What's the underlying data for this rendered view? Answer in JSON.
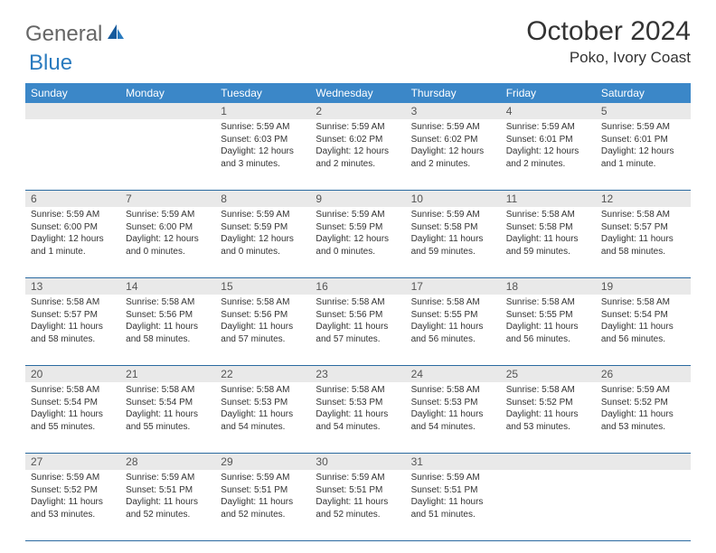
{
  "brand": {
    "part1": "General",
    "part2": "Blue"
  },
  "title": "October 2024",
  "location": "Poko, Ivory Coast",
  "weekdays": [
    "Sunday",
    "Monday",
    "Tuesday",
    "Wednesday",
    "Thursday",
    "Friday",
    "Saturday"
  ],
  "colors": {
    "header_bg": "#3b87c8",
    "header_text": "#ffffff",
    "daynum_bg": "#e9e9e9",
    "rule": "#2a6aa0",
    "logo_blue": "#2a7bbf"
  },
  "days": [
    {
      "n": "",
      "sun": "",
      "set": "",
      "day": ""
    },
    {
      "n": "",
      "sun": "",
      "set": "",
      "day": ""
    },
    {
      "n": "1",
      "sun": "Sunrise: 5:59 AM",
      "set": "Sunset: 6:03 PM",
      "day": "Daylight: 12 hours and 3 minutes."
    },
    {
      "n": "2",
      "sun": "Sunrise: 5:59 AM",
      "set": "Sunset: 6:02 PM",
      "day": "Daylight: 12 hours and 2 minutes."
    },
    {
      "n": "3",
      "sun": "Sunrise: 5:59 AM",
      "set": "Sunset: 6:02 PM",
      "day": "Daylight: 12 hours and 2 minutes."
    },
    {
      "n": "4",
      "sun": "Sunrise: 5:59 AM",
      "set": "Sunset: 6:01 PM",
      "day": "Daylight: 12 hours and 2 minutes."
    },
    {
      "n": "5",
      "sun": "Sunrise: 5:59 AM",
      "set": "Sunset: 6:01 PM",
      "day": "Daylight: 12 hours and 1 minute."
    },
    {
      "n": "6",
      "sun": "Sunrise: 5:59 AM",
      "set": "Sunset: 6:00 PM",
      "day": "Daylight: 12 hours and 1 minute."
    },
    {
      "n": "7",
      "sun": "Sunrise: 5:59 AM",
      "set": "Sunset: 6:00 PM",
      "day": "Daylight: 12 hours and 0 minutes."
    },
    {
      "n": "8",
      "sun": "Sunrise: 5:59 AM",
      "set": "Sunset: 5:59 PM",
      "day": "Daylight: 12 hours and 0 minutes."
    },
    {
      "n": "9",
      "sun": "Sunrise: 5:59 AM",
      "set": "Sunset: 5:59 PM",
      "day": "Daylight: 12 hours and 0 minutes."
    },
    {
      "n": "10",
      "sun": "Sunrise: 5:59 AM",
      "set": "Sunset: 5:58 PM",
      "day": "Daylight: 11 hours and 59 minutes."
    },
    {
      "n": "11",
      "sun": "Sunrise: 5:58 AM",
      "set": "Sunset: 5:58 PM",
      "day": "Daylight: 11 hours and 59 minutes."
    },
    {
      "n": "12",
      "sun": "Sunrise: 5:58 AM",
      "set": "Sunset: 5:57 PM",
      "day": "Daylight: 11 hours and 58 minutes."
    },
    {
      "n": "13",
      "sun": "Sunrise: 5:58 AM",
      "set": "Sunset: 5:57 PM",
      "day": "Daylight: 11 hours and 58 minutes."
    },
    {
      "n": "14",
      "sun": "Sunrise: 5:58 AM",
      "set": "Sunset: 5:56 PM",
      "day": "Daylight: 11 hours and 58 minutes."
    },
    {
      "n": "15",
      "sun": "Sunrise: 5:58 AM",
      "set": "Sunset: 5:56 PM",
      "day": "Daylight: 11 hours and 57 minutes."
    },
    {
      "n": "16",
      "sun": "Sunrise: 5:58 AM",
      "set": "Sunset: 5:56 PM",
      "day": "Daylight: 11 hours and 57 minutes."
    },
    {
      "n": "17",
      "sun": "Sunrise: 5:58 AM",
      "set": "Sunset: 5:55 PM",
      "day": "Daylight: 11 hours and 56 minutes."
    },
    {
      "n": "18",
      "sun": "Sunrise: 5:58 AM",
      "set": "Sunset: 5:55 PM",
      "day": "Daylight: 11 hours and 56 minutes."
    },
    {
      "n": "19",
      "sun": "Sunrise: 5:58 AM",
      "set": "Sunset: 5:54 PM",
      "day": "Daylight: 11 hours and 56 minutes."
    },
    {
      "n": "20",
      "sun": "Sunrise: 5:58 AM",
      "set": "Sunset: 5:54 PM",
      "day": "Daylight: 11 hours and 55 minutes."
    },
    {
      "n": "21",
      "sun": "Sunrise: 5:58 AM",
      "set": "Sunset: 5:54 PM",
      "day": "Daylight: 11 hours and 55 minutes."
    },
    {
      "n": "22",
      "sun": "Sunrise: 5:58 AM",
      "set": "Sunset: 5:53 PM",
      "day": "Daylight: 11 hours and 54 minutes."
    },
    {
      "n": "23",
      "sun": "Sunrise: 5:58 AM",
      "set": "Sunset: 5:53 PM",
      "day": "Daylight: 11 hours and 54 minutes."
    },
    {
      "n": "24",
      "sun": "Sunrise: 5:58 AM",
      "set": "Sunset: 5:53 PM",
      "day": "Daylight: 11 hours and 54 minutes."
    },
    {
      "n": "25",
      "sun": "Sunrise: 5:58 AM",
      "set": "Sunset: 5:52 PM",
      "day": "Daylight: 11 hours and 53 minutes."
    },
    {
      "n": "26",
      "sun": "Sunrise: 5:59 AM",
      "set": "Sunset: 5:52 PM",
      "day": "Daylight: 11 hours and 53 minutes."
    },
    {
      "n": "27",
      "sun": "Sunrise: 5:59 AM",
      "set": "Sunset: 5:52 PM",
      "day": "Daylight: 11 hours and 53 minutes."
    },
    {
      "n": "28",
      "sun": "Sunrise: 5:59 AM",
      "set": "Sunset: 5:51 PM",
      "day": "Daylight: 11 hours and 52 minutes."
    },
    {
      "n": "29",
      "sun": "Sunrise: 5:59 AM",
      "set": "Sunset: 5:51 PM",
      "day": "Daylight: 11 hours and 52 minutes."
    },
    {
      "n": "30",
      "sun": "Sunrise: 5:59 AM",
      "set": "Sunset: 5:51 PM",
      "day": "Daylight: 11 hours and 52 minutes."
    },
    {
      "n": "31",
      "sun": "Sunrise: 5:59 AM",
      "set": "Sunset: 5:51 PM",
      "day": "Daylight: 11 hours and 51 minutes."
    },
    {
      "n": "",
      "sun": "",
      "set": "",
      "day": ""
    },
    {
      "n": "",
      "sun": "",
      "set": "",
      "day": ""
    }
  ]
}
